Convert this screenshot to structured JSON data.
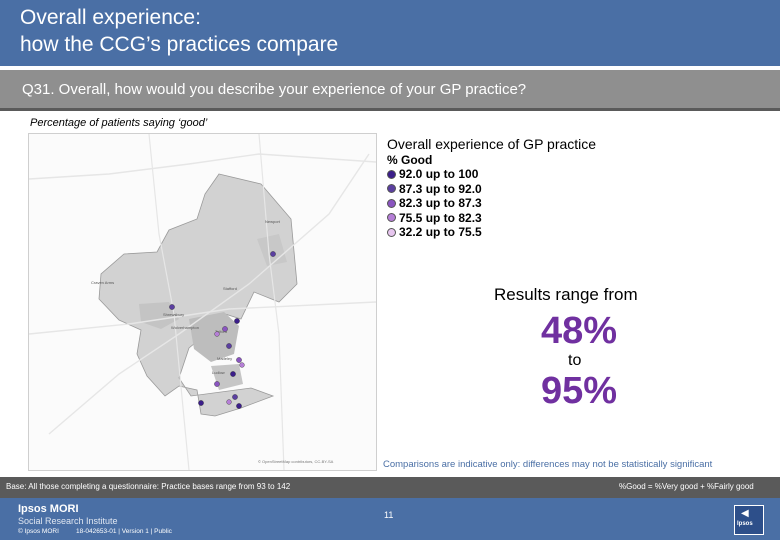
{
  "header": {
    "title_line1": "Overall experience:",
    "title_line2": "how the CCG’s practices compare"
  },
  "question": {
    "text": "Q31. Overall, how would you describe your experience of your GP practice?"
  },
  "subtitle": "Percentage of patients saying ‘good’",
  "map": {
    "labels": [
      "Newport",
      "Stafford",
      "Wolverhampton",
      "Telford",
      "Madeley",
      "Ludlow",
      "Shrewsbury",
      "Craven Arms"
    ],
    "credit": "© OpenStreetMap contributors, CC-BY-SA"
  },
  "legend": {
    "title": "Overall experience of GP practice",
    "subtitle": "% Good",
    "items": [
      {
        "label": "92.0 up to 100",
        "color": "#3b1e8a"
      },
      {
        "label": "87.3 up to 92.0",
        "color": "#5b3fa0"
      },
      {
        "label": "82.3 up to 87.3",
        "color": "#8a55c0"
      },
      {
        "label": "75.5 up to 82.3",
        "color": "#b57ed6"
      },
      {
        "label": "32.2 up to 75.5",
        "color": "#e7c6ef"
      }
    ]
  },
  "range": {
    "intro": "Results range from",
    "low": "48%",
    "to": "to",
    "high": "95%"
  },
  "comparisons": "Comparisons are indicative only: differences may not be statistically significant",
  "footer": {
    "base": "Base: All those completing a questionnaire: Practice bases range from 93 to 142",
    "note": "%Good = %Very good + %Fairly good",
    "logo_line1": "Ipsos MORI",
    "logo_line2": "Social Research Institute",
    "copyright": "© Ipsos MORI",
    "job": "18-042653-01 | Version 1 | Public",
    "page": "11",
    "brand": "Ipsos"
  },
  "colors": {
    "header": "#4a6fa5",
    "question_bar": "#8f8f8f",
    "accent": "#7030a0"
  }
}
